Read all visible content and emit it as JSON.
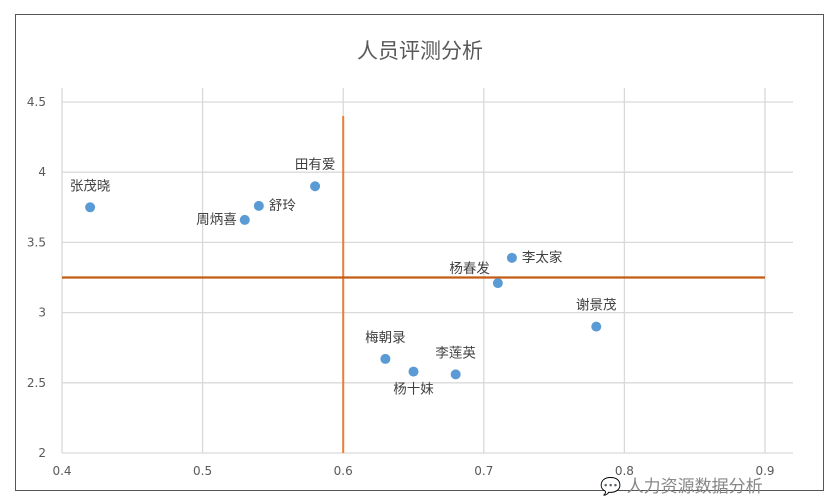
{
  "chart_data": {
    "type": "scatter",
    "title": "人员评测分析",
    "xlim": [
      0.4,
      0.9
    ],
    "ylim": [
      2,
      4.5
    ],
    "x_ticks": [
      "0.4",
      "0.5",
      "0.6",
      "0.7",
      "0.8",
      "0.9"
    ],
    "y_ticks": [
      "2",
      "2.5",
      "3",
      "3.5",
      "4",
      "4.5"
    ],
    "grid": true,
    "point_color": "#5B9BD5",
    "points": [
      {
        "label": "张茂晓",
        "x": 0.42,
        "y": 3.75
      },
      {
        "label": "舒玲",
        "x": 0.54,
        "y": 3.76
      },
      {
        "label": "周炳喜",
        "x": 0.53,
        "y": 3.66
      },
      {
        "label": "田有爱",
        "x": 0.58,
        "y": 3.9
      },
      {
        "label": "李太家",
        "x": 0.72,
        "y": 3.39
      },
      {
        "label": "杨春发",
        "x": 0.71,
        "y": 3.21
      },
      {
        "label": "谢景茂",
        "x": 0.78,
        "y": 2.9
      },
      {
        "label": "梅朝录",
        "x": 0.63,
        "y": 2.67
      },
      {
        "label": "杨十妹",
        "x": 0.65,
        "y": 2.58
      },
      {
        "label": "李莲英",
        "x": 0.68,
        "y": 2.56
      }
    ],
    "reference_lines": [
      {
        "orientation": "vertical",
        "x": 0.6,
        "y_range": [
          2,
          4.4
        ],
        "color": "#ED7D31"
      },
      {
        "orientation": "horizontal",
        "y": 3.25,
        "x_range": [
          0.4,
          0.9
        ],
        "color": "#C55A11"
      }
    ]
  },
  "watermark": "人力资源数据分析"
}
